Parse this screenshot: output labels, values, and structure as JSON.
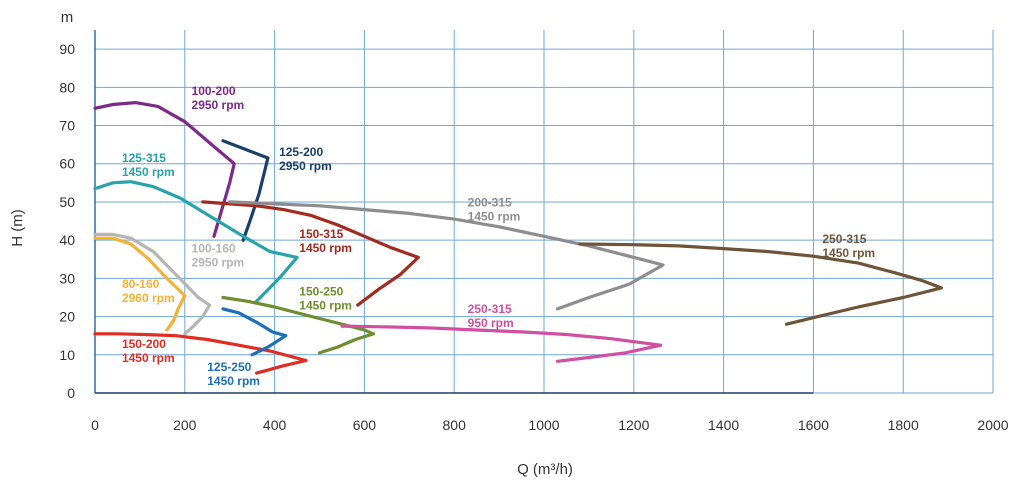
{
  "chart_data": {
    "type": "line",
    "xlabel": "Q (m³/h)",
    "ylabel": "H (m)",
    "y_unit": "m",
    "xlim": [
      0,
      2000
    ],
    "ylim": [
      0,
      95
    ],
    "xticks": [
      0,
      200,
      400,
      600,
      800,
      1000,
      1200,
      1400,
      1600,
      1800,
      2000
    ],
    "yticks": [
      0,
      10,
      20,
      30,
      40,
      50,
      60,
      70,
      80,
      90
    ],
    "grid": true,
    "series": [
      {
        "name": "100-200",
        "speed": "2950 rpm",
        "color": "#7b2a86",
        "points": [
          [
            0,
            74.5
          ],
          [
            40,
            75.5
          ],
          [
            90,
            76
          ],
          [
            140,
            75
          ],
          [
            200,
            71
          ],
          [
            260,
            65
          ],
          [
            310,
            60
          ],
          [
            300,
            55
          ],
          [
            280,
            47
          ],
          [
            265,
            41
          ]
        ]
      },
      {
        "name": "125-200",
        "speed": "2950 rpm",
        "color": "#1b3f6b",
        "points": [
          [
            285,
            66
          ],
          [
            385,
            61.5
          ],
          [
            365,
            52
          ],
          [
            345,
            45
          ],
          [
            330,
            40
          ]
        ]
      },
      {
        "name": "125-315",
        "speed": "1450 rpm",
        "color": "#27a3ab",
        "points": [
          [
            0,
            53.5
          ],
          [
            40,
            55
          ],
          [
            80,
            55.3
          ],
          [
            130,
            54
          ],
          [
            190,
            51
          ],
          [
            260,
            46
          ],
          [
            330,
            41
          ],
          [
            390,
            37
          ],
          [
            450,
            35.5
          ],
          [
            410,
            30
          ],
          [
            360,
            24
          ]
        ]
      },
      {
        "name": "100-160",
        "speed": "2950 rpm",
        "color": "#b5b5b5",
        "points": [
          [
            0,
            41.5
          ],
          [
            40,
            41.5
          ],
          [
            80,
            40.5
          ],
          [
            130,
            37
          ],
          [
            180,
            31
          ],
          [
            230,
            25
          ],
          [
            255,
            23
          ],
          [
            240,
            20
          ],
          [
            215,
            17
          ],
          [
            200,
            15.5
          ]
        ]
      },
      {
        "name": "80-160",
        "speed": "2960 rpm",
        "color": "#f2b233",
        "points": [
          [
            0,
            40.5
          ],
          [
            40,
            40.5
          ],
          [
            80,
            39
          ],
          [
            120,
            35
          ],
          [
            160,
            30
          ],
          [
            200,
            25.5
          ],
          [
            185,
            22
          ],
          [
            175,
            19
          ],
          [
            160,
            16.5
          ]
        ]
      },
      {
        "name": "150-200",
        "speed": "1450 rpm",
        "color": "#e02d22",
        "points": [
          [
            0,
            15.5
          ],
          [
            50,
            15.5
          ],
          [
            110,
            15.3
          ],
          [
            180,
            15
          ],
          [
            250,
            14
          ],
          [
            320,
            12.5
          ],
          [
            390,
            11
          ],
          [
            470,
            8.5
          ],
          [
            415,
            7
          ],
          [
            385,
            6
          ],
          [
            360,
            5.2
          ]
        ]
      },
      {
        "name": "125-250",
        "speed": "1450 rpm",
        "color": "#1c6fb8",
        "points": [
          [
            285,
            22
          ],
          [
            320,
            21
          ],
          [
            360,
            18.5
          ],
          [
            395,
            16
          ],
          [
            425,
            15
          ],
          [
            385,
            12
          ],
          [
            350,
            10
          ]
        ]
      },
      {
        "name": "150-315",
        "speed": "1450 rpm",
        "color": "#a32a1e",
        "points": [
          [
            240,
            50
          ],
          [
            300,
            49.5
          ],
          [
            360,
            49
          ],
          [
            420,
            48
          ],
          [
            480,
            46.5
          ],
          [
            540,
            44
          ],
          [
            600,
            41
          ],
          [
            660,
            38
          ],
          [
            720,
            35.5
          ],
          [
            680,
            31
          ],
          [
            630,
            27
          ],
          [
            585,
            23
          ]
        ]
      },
      {
        "name": "150-250",
        "speed": "1450 rpm",
        "color": "#6e8e2f",
        "points": [
          [
            285,
            25
          ],
          [
            340,
            24
          ],
          [
            400,
            22.5
          ],
          [
            450,
            21
          ],
          [
            500,
            19.5
          ],
          [
            550,
            18
          ],
          [
            600,
            16.5
          ],
          [
            620,
            15.5
          ],
          [
            580,
            14
          ],
          [
            540,
            12
          ],
          [
            500,
            10.5
          ]
        ]
      },
      {
        "name": "250-315",
        "speed": "950 rpm",
        "color": "#d14fa1",
        "points": [
          [
            550,
            17.5
          ],
          [
            650,
            17.3
          ],
          [
            750,
            17
          ],
          [
            850,
            16.5
          ],
          [
            950,
            16
          ],
          [
            1050,
            15.3
          ],
          [
            1150,
            14.2
          ],
          [
            1260,
            12.5
          ],
          [
            1180,
            10.5
          ],
          [
            1100,
            9.3
          ],
          [
            1030,
            8.3
          ]
        ]
      },
      {
        "name": "200-315",
        "speed": "1450 rpm",
        "color": "#8d8d90",
        "points": [
          [
            300,
            50
          ],
          [
            400,
            49.5
          ],
          [
            500,
            49
          ],
          [
            600,
            48
          ],
          [
            700,
            47
          ],
          [
            800,
            45.5
          ],
          [
            900,
            43.5
          ],
          [
            1000,
            41
          ],
          [
            1100,
            38.5
          ],
          [
            1200,
            35.5
          ],
          [
            1265,
            33.5
          ],
          [
            1190,
            28.5
          ],
          [
            1100,
            25
          ],
          [
            1030,
            22
          ]
        ]
      },
      {
        "name": "250-315",
        "speed": "1450 rpm",
        "color": "#6e5538",
        "points": [
          [
            1080,
            39
          ],
          [
            1200,
            38.8
          ],
          [
            1300,
            38.5
          ],
          [
            1400,
            37.8
          ],
          [
            1500,
            37
          ],
          [
            1600,
            35.8
          ],
          [
            1700,
            34
          ],
          [
            1780,
            31.5
          ],
          [
            1840,
            29.5
          ],
          [
            1885,
            27.5
          ],
          [
            1800,
            25
          ],
          [
            1700,
            22.5
          ],
          [
            1610,
            20
          ],
          [
            1540,
            18
          ]
        ]
      }
    ],
    "annotations": [
      {
        "series": 0,
        "q": 215,
        "h": 78
      },
      {
        "series": 1,
        "q": 410,
        "h": 62
      },
      {
        "series": 2,
        "q": 60,
        "h": 60.5
      },
      {
        "series": 3,
        "q": 215,
        "h": 36.8
      },
      {
        "series": 4,
        "q": 60,
        "h": 27.5
      },
      {
        "series": 5,
        "q": 60,
        "h": 11.8
      },
      {
        "series": 6,
        "q": 250,
        "h": 5.8
      },
      {
        "series": 7,
        "q": 455,
        "h": 40.5
      },
      {
        "series": 8,
        "q": 455,
        "h": 25.5
      },
      {
        "series": 9,
        "q": 830,
        "h": 21
      },
      {
        "series": 10,
        "q": 830,
        "h": 48.8
      },
      {
        "series": 11,
        "q": 1620,
        "h": 39.3
      }
    ]
  }
}
